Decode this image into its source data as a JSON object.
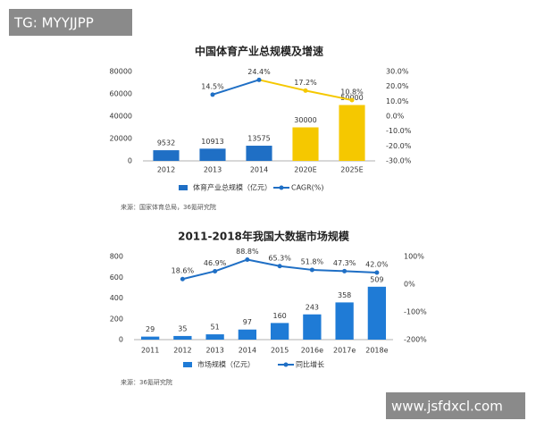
{
  "overlay": {
    "top_left": "TG: MYYJJPP",
    "bottom_right": "www.jsfdxcl.com"
  },
  "chart_data": [
    {
      "type": "bar",
      "title": "中国体育产业总规模及增速",
      "source": "来源：国家体育总局，36氪研究院",
      "categories": [
        "2012",
        "2013",
        "2014",
        "2020E",
        "2025E"
      ],
      "ylim": [
        0,
        80000
      ],
      "yticks": [
        0,
        20000,
        40000,
        60000,
        80000
      ],
      "y2lim": [
        -30,
        30
      ],
      "y2ticks": [
        {
          "value": 30,
          "label": "30.0%"
        },
        {
          "value": 20,
          "label": "20.0%"
        },
        {
          "value": 10,
          "label": "10.0%"
        },
        {
          "value": 0,
          "label": "0.0%"
        },
        {
          "value": -10,
          "label": "-10.0%"
        },
        {
          "value": -20,
          "label": "-20.0%"
        },
        {
          "value": -30,
          "label": "-30.0%"
        }
      ],
      "series": [
        {
          "name": "体育产业总规模（亿元）",
          "type": "bar",
          "color": "#1f6fc5",
          "colors": [
            "#1f6fc5",
            "#1f6fc5",
            "#1f6fc5",
            "#f5c800",
            "#f5c800"
          ],
          "values": [
            9532,
            10913,
            13575,
            30000,
            50000
          ]
        },
        {
          "name": "CAGR(%)",
          "type": "line",
          "axis": "y2",
          "color": "#1f6fc5",
          "colors": [
            "#1f6fc5",
            "#1f6fc5",
            "#1f6fc5",
            "#f5c800",
            "#f5c800"
          ],
          "values": [
            null,
            14.5,
            24.4,
            17.2,
            10.8
          ],
          "value_labels": [
            null,
            "14.5%",
            "24.4%",
            "17.2%",
            "10.8%"
          ]
        }
      ]
    },
    {
      "type": "bar",
      "title": "2011-2018年我国大数据市场规模",
      "source": "来源：36氪研究院",
      "categories": [
        "2011",
        "2012",
        "2013",
        "2014",
        "2015",
        "2016e",
        "2017e",
        "2018e"
      ],
      "ylim": [
        0,
        800
      ],
      "yticks": [
        0,
        200,
        400,
        600,
        800
      ],
      "y2lim": [
        -200,
        100
      ],
      "y2ticks": [
        {
          "value": 100,
          "label": "100%"
        },
        {
          "value": 0,
          "label": "0%"
        },
        {
          "value": -100,
          "label": "-100%"
        },
        {
          "value": -200,
          "label": "-200%"
        }
      ],
      "series": [
        {
          "name": "市场规模（亿元）",
          "type": "bar",
          "color": "#1f7bd6",
          "values": [
            29,
            35,
            51,
            97,
            160,
            243,
            358,
            509
          ]
        },
        {
          "name": "同比增长",
          "type": "line",
          "axis": "y2",
          "color": "#1f6fc5",
          "values": [
            null,
            18.6,
            46.9,
            88.8,
            65.3,
            51.8,
            47.3,
            42.0
          ],
          "value_labels": [
            null,
            "18.6%",
            "46.9%",
            "88.8%",
            "65.3%",
            "51.8%",
            "47.3%",
            "42.0%"
          ]
        }
      ]
    }
  ]
}
